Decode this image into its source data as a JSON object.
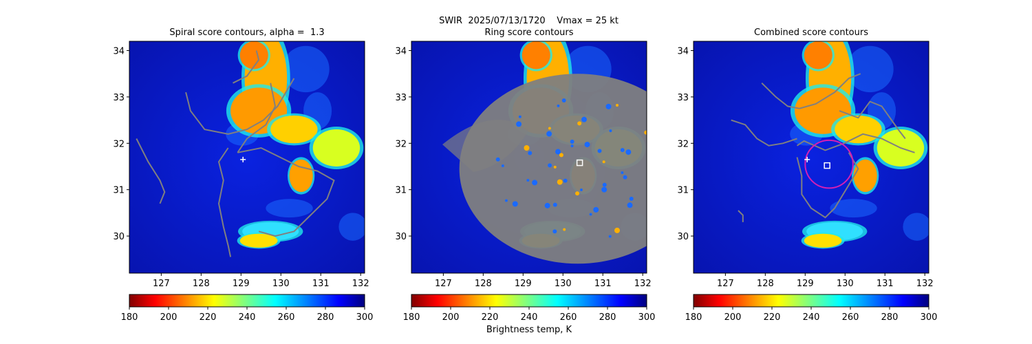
{
  "suptitle": "SWIR  2025/07/13/1720    Vmax = 25 kt",
  "panels": [
    {
      "title": "Spiral score contours, alpha =  1.3"
    },
    {
      "title": "Ring score contours"
    },
    {
      "title": "Combined score contours"
    }
  ],
  "colorbar_label": "Brightness temp, K",
  "colors": {
    "contour": "#808080",
    "marker": "#ffffff",
    "ring": "#d41fb4"
  },
  "chart_data": [
    {
      "type": "heatmap",
      "title": "Spiral score contours, alpha =  1.3",
      "xlim": [
        126.2,
        132.1
      ],
      "ylim": [
        29.2,
        34.2
      ],
      "x_ticks": [
        127,
        128,
        129,
        130,
        131,
        132
      ],
      "y_ticks": [
        30,
        31,
        32,
        33,
        34
      ],
      "colormap": "jet_r",
      "colorbar": {
        "range": [
          180,
          300
        ],
        "ticks": [
          180,
          200,
          220,
          240,
          260,
          280,
          300
        ]
      },
      "markers": [
        {
          "shape": "plus",
          "x": 129.05,
          "y": 31.65
        }
      ],
      "overlay": "spiral contour lines"
    },
    {
      "type": "heatmap",
      "title": "Ring score contours",
      "xlim": [
        126.2,
        132.1
      ],
      "ylim": [
        29.2,
        34.2
      ],
      "x_ticks": [
        127,
        128,
        129,
        130,
        131,
        132
      ],
      "y_ticks": [
        30,
        31,
        32,
        33,
        34
      ],
      "colormap": "jet_r",
      "colorbar": {
        "range": [
          180,
          300
        ],
        "ticks": [
          180,
          200,
          220,
          240,
          260,
          280,
          300
        ]
      },
      "markers": [
        {
          "shape": "square",
          "x": 130.42,
          "y": 31.58
        }
      ],
      "overlay": "dense ring score contours"
    },
    {
      "type": "heatmap",
      "title": "Combined score contours",
      "xlim": [
        126.2,
        132.1
      ],
      "ylim": [
        29.2,
        34.2
      ],
      "x_ticks": [
        127,
        128,
        129,
        130,
        131,
        132
      ],
      "y_ticks": [
        30,
        31,
        32,
        33,
        34
      ],
      "colormap": "jet_r",
      "colorbar": {
        "range": [
          180,
          300
        ],
        "ticks": [
          180,
          200,
          220,
          240,
          260,
          280,
          300
        ]
      },
      "markers": [
        {
          "shape": "plus",
          "x": 129.05,
          "y": 31.65
        },
        {
          "shape": "square",
          "x": 129.55,
          "y": 31.52
        }
      ],
      "circle": {
        "cx": 129.6,
        "cy": 31.55,
        "r": 0.6
      },
      "overlay": "combined score contours"
    }
  ]
}
